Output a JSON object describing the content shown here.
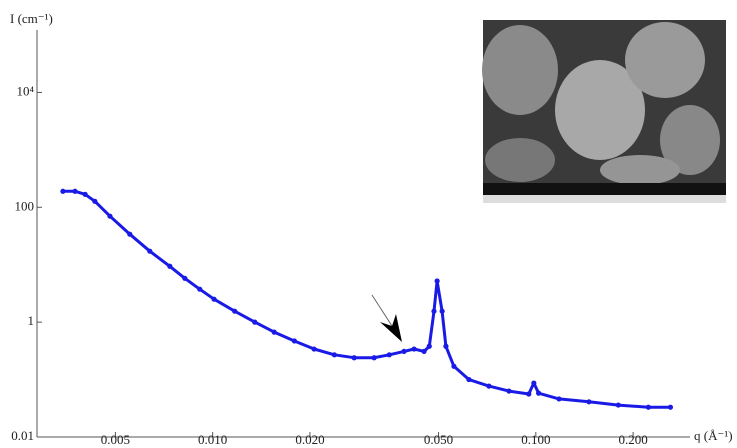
{
  "chart_data": {
    "type": "scatter",
    "x_label": "q (Å⁻¹)",
    "y_label": "I (cm⁻¹)",
    "x_log": true,
    "y_log": true,
    "xlim": [
      0.00286,
      0.3
    ],
    "ylim": [
      0.01,
      100000
    ],
    "xticks": [
      0.005,
      {
        "value": 0.01,
        "label": "0.010"
      },
      {
        "value": 0.02,
        "label": "0.020"
      },
      {
        "value": 0.05,
        "label": "0.050"
      },
      {
        "value": 0.1,
        "label": "0.100"
      },
      {
        "value": 0.2,
        "label": "0.200"
      }
    ],
    "yticks": [
      0.01,
      1,
      100,
      {
        "value": 10000,
        "label": "10⁴"
      }
    ],
    "series": [
      {
        "color": "#1a1ae6",
        "x": [
          0.00344,
          0.00375,
          0.00403,
          0.00432,
          0.00481,
          0.00554,
          0.00639,
          0.00737,
          0.0082,
          0.00912,
          0.0101,
          0.0117,
          0.0135,
          0.0155,
          0.0179,
          0.0206,
          0.0238,
          0.0274,
          0.0316,
          0.0352,
          0.0391,
          0.042,
          0.0451,
          0.0468,
          0.0484,
          0.0495,
          0.0513,
          0.0527,
          0.0558,
          0.0621,
          0.0716,
          0.0826,
          0.0951,
          0.0986,
          0.102,
          0.118,
          0.146,
          0.18,
          0.223,
          0.261
        ],
        "values": [
          190,
          190,
          168,
          127,
          70,
          34,
          17.2,
          9.4,
          5.8,
          3.75,
          2.51,
          1.55,
          1.0,
          0.67,
          0.47,
          0.34,
          0.27,
          0.24,
          0.24,
          0.27,
          0.31,
          0.34,
          0.31,
          0.38,
          1.55,
          5.2,
          1.55,
          0.38,
          0.17,
          0.1,
          0.077,
          0.063,
          0.056,
          0.087,
          0.058,
          0.046,
          0.041,
          0.036,
          0.033,
          0.033
        ]
      }
    ]
  }
}
